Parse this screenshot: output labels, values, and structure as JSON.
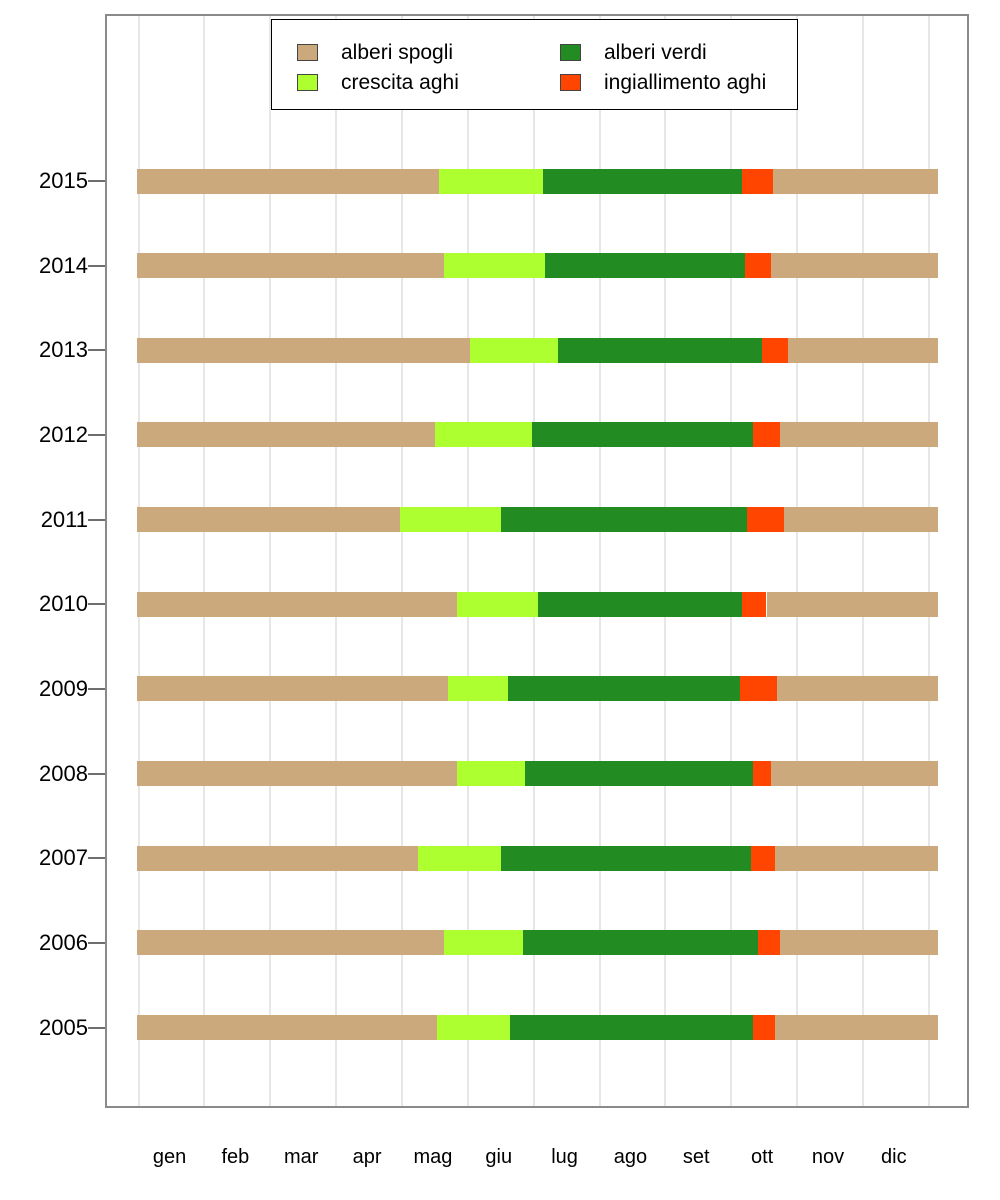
{
  "chart_data": {
    "type": "bar",
    "subtype": "horizontal-stacked-phenology-timeline",
    "title": "",
    "x_axis": {
      "unit": "day_of_year",
      "range": [
        0,
        365
      ],
      "gridline_interval_days": 30,
      "month_labels": [
        "gen",
        "feb",
        "mar",
        "apr",
        "mag",
        "giu",
        "lug",
        "ago",
        "set",
        "ott",
        "nov",
        "dic"
      ]
    },
    "y_axis": {
      "years": [
        "2015",
        "2014",
        "2013",
        "2012",
        "2011",
        "2010",
        "2009",
        "2008",
        "2007",
        "2006",
        "2005"
      ]
    },
    "legend": {
      "items": [
        {
          "label": "alberi spogli",
          "color": "#CBA97C"
        },
        {
          "label": "crescita aghi",
          "color": "#ADFF2F"
        },
        {
          "label": "alberi verdi",
          "color": "#228B22"
        },
        {
          "label": "ingiallimento aghi",
          "color": "#FF4500"
        }
      ]
    },
    "bars": [
      {
        "year": "2015",
        "crescita_start_day": 138,
        "verdi_start_day": 185,
        "ingiallimento_start_day": 276,
        "ingiallimento_end_day": 290
      },
      {
        "year": "2014",
        "crescita_start_day": 140,
        "verdi_start_day": 186,
        "ingiallimento_start_day": 277,
        "ingiallimento_end_day": 289
      },
      {
        "year": "2013",
        "crescita_start_day": 152,
        "verdi_start_day": 192,
        "ingiallimento_start_day": 285,
        "ingiallimento_end_day": 297
      },
      {
        "year": "2012",
        "crescita_start_day": 136,
        "verdi_start_day": 180,
        "ingiallimento_start_day": 281,
        "ingiallimento_end_day": 293
      },
      {
        "year": "2011",
        "crescita_start_day": 120,
        "verdi_start_day": 166,
        "ingiallimento_start_day": 278,
        "ingiallimento_end_day": 295
      },
      {
        "year": "2010",
        "crescita_start_day": 146,
        "verdi_start_day": 183,
        "ingiallimento_start_day": 276,
        "ingiallimento_end_day": 287
      },
      {
        "year": "2009",
        "crescita_start_day": 142,
        "verdi_start_day": 169,
        "ingiallimento_start_day": 275,
        "ingiallimento_end_day": 292
      },
      {
        "year": "2008",
        "crescita_start_day": 146,
        "verdi_start_day": 177,
        "ingiallimento_start_day": 281,
        "ingiallimento_end_day": 289
      },
      {
        "year": "2007",
        "crescita_start_day": 128,
        "verdi_start_day": 166,
        "ingiallimento_start_day": 280,
        "ingiallimento_end_day": 291
      },
      {
        "year": "2006",
        "crescita_start_day": 140,
        "verdi_start_day": 176,
        "ingiallimento_start_day": 283,
        "ingiallimento_end_day": 293
      },
      {
        "year": "2005",
        "crescita_start_day": 137,
        "verdi_start_day": 170,
        "ingiallimento_start_day": 281,
        "ingiallimento_end_day": 291
      }
    ],
    "colors": {
      "alberi_spogli": "#CBA97C",
      "crescita_aghi": "#ADFF2F",
      "alberi_verdi": "#228B22",
      "ingiallimento_aghi": "#FF4500",
      "gridline": "#E7E7E7",
      "plot_border": "#8A8A8A"
    },
    "layout_hints": {
      "legend_position": "top-center-inside",
      "grid": "vertical-only"
    }
  }
}
